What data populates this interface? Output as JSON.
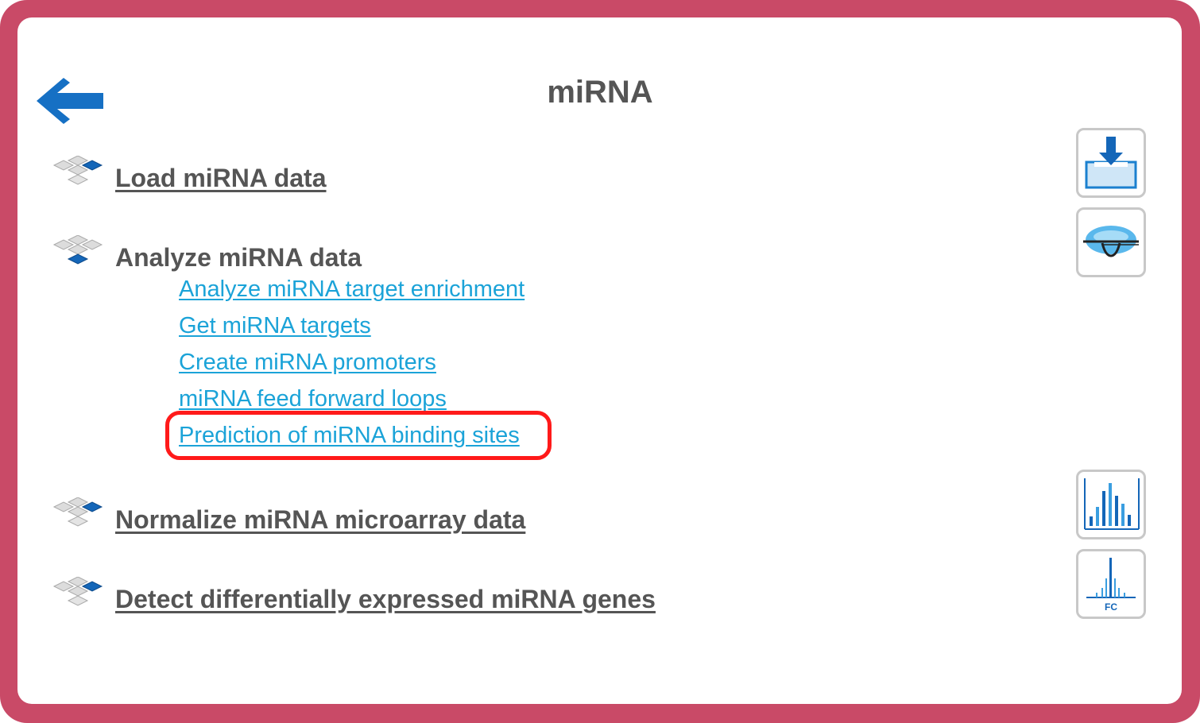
{
  "page": {
    "title": "miRNA"
  },
  "sections": {
    "load": {
      "label": "Load miRNA data"
    },
    "analyze": {
      "label": "Analyze miRNA data",
      "links": [
        "Analyze miRNA target enrichment",
        "Get miRNA targets",
        "Create miRNA promoters",
        "miRNA feed forward loops",
        "Prediction of miRNA binding sites"
      ]
    },
    "normalize": {
      "label": "Normalize miRNA microarray data"
    },
    "detect": {
      "label": "Detect differentially expressed miRNA genes"
    }
  },
  "icons": {
    "back": "back-arrow-icon",
    "section": "cubes-icon",
    "load": "download-tray-icon",
    "analyze": "binding-site-icon",
    "normalize": "histogram-icon",
    "detect": "fold-change-icon",
    "fc_label": "FC"
  },
  "colors": {
    "frame": "#c94a67",
    "link": "#1ba3d8",
    "heading": "#555555",
    "highlight": "#ff1a1a",
    "accent_blue": "#1466b8"
  }
}
